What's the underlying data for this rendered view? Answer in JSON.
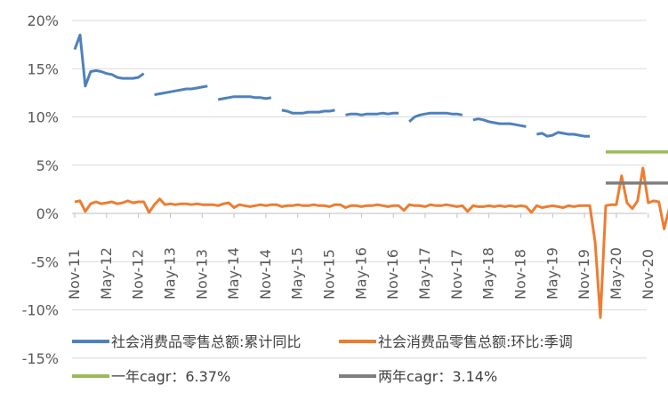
{
  "chart_data": {
    "type": "line",
    "title": "",
    "xlabel": "",
    "ylabel": "",
    "y_unit": "%",
    "ylim": [
      -15,
      20
    ],
    "yticks": [
      -15,
      -10,
      -5,
      0,
      5,
      10,
      15,
      20
    ],
    "ytick_labels": [
      "-15%",
      "-10%",
      "-5%",
      "0%",
      "5%",
      "10%",
      "15%",
      "20%"
    ],
    "x_start": "2011-11",
    "x_end": "2021-03",
    "xtick_labels": [
      "Nov-11",
      "May-12",
      "Nov-12",
      "May-13",
      "Nov-13",
      "May-14",
      "Nov-14",
      "May-15",
      "Nov-15",
      "May-16",
      "Nov-16",
      "May-17",
      "Nov-17",
      "May-18",
      "Nov-18",
      "May-19",
      "Nov-19",
      "May-20",
      "Nov-20"
    ],
    "grid": "horizontal",
    "legend_position": "bottom",
    "colors": {
      "blue": "#4E81BD",
      "orange": "#ED7D31",
      "green": "#9BBB59",
      "gray": "#7F7F7F",
      "grid": "#D9D9D9",
      "axis": "#BFBFBF",
      "text": "#595959"
    },
    "series": [
      {
        "name": "社会消费品零售总额:累计同比",
        "color": "#4E81BD",
        "segments": [
          {
            "x": [
              "2011-11",
              "2011-12",
              "2012-01",
              "2012-02",
              "2012-03",
              "2012-04",
              "2012-05",
              "2012-06",
              "2012-07",
              "2012-08",
              "2012-09",
              "2012-10",
              "2012-11",
              "2012-12"
            ],
            "y": [
              17.0,
              18.5,
              13.2,
              14.7,
              14.8,
              14.7,
              14.5,
              14.4,
              14.1,
              14.0,
              14.0,
              14.0,
              14.1,
              14.5
            ]
          },
          {
            "x": [
              "2013-02",
              "2013-03",
              "2013-04",
              "2013-05",
              "2013-06",
              "2013-07",
              "2013-08",
              "2013-09",
              "2013-10",
              "2013-11",
              "2013-12"
            ],
            "y": [
              12.3,
              12.4,
              12.5,
              12.6,
              12.7,
              12.8,
              12.9,
              12.9,
              13.0,
              13.1,
              13.2
            ]
          },
          {
            "x": [
              "2014-02",
              "2014-03",
              "2014-04",
              "2014-05",
              "2014-06",
              "2014-07",
              "2014-08",
              "2014-09",
              "2014-10",
              "2014-11",
              "2014-12"
            ],
            "y": [
              11.8,
              11.9,
              12.0,
              12.1,
              12.1,
              12.1,
              12.1,
              12.0,
              12.0,
              11.9,
              12.0
            ]
          },
          {
            "x": [
              "2015-02",
              "2015-03",
              "2015-04",
              "2015-05",
              "2015-06",
              "2015-07",
              "2015-08",
              "2015-09",
              "2015-10",
              "2015-11",
              "2015-12"
            ],
            "y": [
              10.7,
              10.6,
              10.4,
              10.4,
              10.4,
              10.5,
              10.5,
              10.5,
              10.6,
              10.6,
              10.7
            ]
          },
          {
            "x": [
              "2016-02",
              "2016-03",
              "2016-04",
              "2016-05",
              "2016-06",
              "2016-07",
              "2016-08",
              "2016-09",
              "2016-10",
              "2016-11",
              "2016-12"
            ],
            "y": [
              10.2,
              10.3,
              10.3,
              10.2,
              10.3,
              10.3,
              10.3,
              10.4,
              10.3,
              10.4,
              10.4
            ]
          },
          {
            "x": [
              "2017-02",
              "2017-03",
              "2017-04",
              "2017-05",
              "2017-06",
              "2017-07",
              "2017-08",
              "2017-09",
              "2017-10",
              "2017-11",
              "2017-12"
            ],
            "y": [
              9.5,
              10.0,
              10.2,
              10.3,
              10.4,
              10.4,
              10.4,
              10.4,
              10.3,
              10.3,
              10.2
            ]
          },
          {
            "x": [
              "2018-02",
              "2018-03",
              "2018-04",
              "2018-05",
              "2018-06",
              "2018-07",
              "2018-08",
              "2018-09",
              "2018-10",
              "2018-11",
              "2018-12"
            ],
            "y": [
              9.7,
              9.8,
              9.7,
              9.5,
              9.4,
              9.3,
              9.3,
              9.3,
              9.2,
              9.1,
              9.0
            ]
          },
          {
            "x": [
              "2019-02",
              "2019-03",
              "2019-04",
              "2019-05",
              "2019-06",
              "2019-07",
              "2019-08",
              "2019-09",
              "2019-10",
              "2019-11",
              "2019-12"
            ],
            "y": [
              8.2,
              8.3,
              8.0,
              8.1,
              8.4,
              8.3,
              8.2,
              8.2,
              8.1,
              8.0,
              8.0
            ]
          }
        ]
      },
      {
        "name": "社会消费品零售总额:环比:季调",
        "color": "#ED7D31",
        "segments": [
          {
            "x": [
              "2011-11",
              "2011-12",
              "2012-01",
              "2012-02",
              "2012-03",
              "2012-04",
              "2012-05",
              "2012-06",
              "2012-07",
              "2012-08",
              "2012-09",
              "2012-10",
              "2012-11",
              "2012-12",
              "2013-01",
              "2013-02",
              "2013-03",
              "2013-04",
              "2013-05",
              "2013-06",
              "2013-07",
              "2013-08",
              "2013-09",
              "2013-10",
              "2013-11",
              "2013-12",
              "2014-01",
              "2014-02",
              "2014-03",
              "2014-04",
              "2014-05",
              "2014-06",
              "2014-07",
              "2014-08",
              "2014-09",
              "2014-10",
              "2014-11",
              "2014-12",
              "2015-01",
              "2015-02",
              "2015-03",
              "2015-04",
              "2015-05",
              "2015-06",
              "2015-07",
              "2015-08",
              "2015-09",
              "2015-10",
              "2015-11",
              "2015-12",
              "2016-01",
              "2016-02",
              "2016-03",
              "2016-04",
              "2016-05",
              "2016-06",
              "2016-07",
              "2016-08",
              "2016-09",
              "2016-10",
              "2016-11",
              "2016-12",
              "2017-01",
              "2017-02",
              "2017-03",
              "2017-04",
              "2017-05",
              "2017-06",
              "2017-07",
              "2017-08",
              "2017-09",
              "2017-10",
              "2017-11",
              "2017-12",
              "2018-01",
              "2018-02",
              "2018-03",
              "2018-04",
              "2018-05",
              "2018-06",
              "2018-07",
              "2018-08",
              "2018-09",
              "2018-10",
              "2018-11",
              "2018-12",
              "2019-01",
              "2019-02",
              "2019-03",
              "2019-04",
              "2019-05",
              "2019-06",
              "2019-07",
              "2019-08",
              "2019-09",
              "2019-10",
              "2019-11",
              "2019-12",
              "2020-01",
              "2020-02",
              "2020-03",
              "2020-04",
              "2020-05",
              "2020-06",
              "2020-07",
              "2020-08",
              "2020-09",
              "2020-10",
              "2020-11",
              "2020-12",
              "2021-01",
              "2021-02",
              "2021-03"
            ],
            "y": [
              1.2,
              1.3,
              0.2,
              1.0,
              1.2,
              1.0,
              1.1,
              1.2,
              1.0,
              1.1,
              1.3,
              1.1,
              1.2,
              1.2,
              0.1,
              0.9,
              1.5,
              0.9,
              1.0,
              0.9,
              1.0,
              1.0,
              0.9,
              1.0,
              0.9,
              0.9,
              0.9,
              0.8,
              1.0,
              1.1,
              0.6,
              0.9,
              0.8,
              0.7,
              0.8,
              0.9,
              0.8,
              0.9,
              0.9,
              0.7,
              0.8,
              0.8,
              0.9,
              0.8,
              0.8,
              0.9,
              0.8,
              0.8,
              0.7,
              0.9,
              0.9,
              0.6,
              0.8,
              0.8,
              0.7,
              0.8,
              0.8,
              0.9,
              0.8,
              0.7,
              0.8,
              0.8,
              0.3,
              0.9,
              0.8,
              0.8,
              0.7,
              0.9,
              0.8,
              0.8,
              0.9,
              0.8,
              0.7,
              0.8,
              0.2,
              0.8,
              0.7,
              0.7,
              0.8,
              0.7,
              0.8,
              0.7,
              0.8,
              0.7,
              0.8,
              0.7,
              0.1,
              0.8,
              0.6,
              0.7,
              0.8,
              0.7,
              0.6,
              0.8,
              0.7,
              0.8,
              0.8,
              0.8,
              -3.0,
              -10.8,
              0.8,
              0.9,
              0.9,
              3.9,
              1.1,
              0.5,
              1.3,
              4.7,
              1.1,
              1.3,
              1.2,
              -1.6,
              0.6
            ]
          }
        ]
      },
      {
        "name": "一年cagr：6.37%",
        "color": "#9BBB59",
        "segments": [
          {
            "x": [
              "2020-03",
              "2021-03"
            ],
            "y": [
              6.37,
              6.37
            ]
          }
        ]
      },
      {
        "name": "两年cagr：3.14%",
        "color": "#7F7F7F",
        "segments": [
          {
            "x": [
              "2020-03",
              "2021-03"
            ],
            "y": [
              3.14,
              3.14
            ]
          }
        ]
      }
    ]
  }
}
